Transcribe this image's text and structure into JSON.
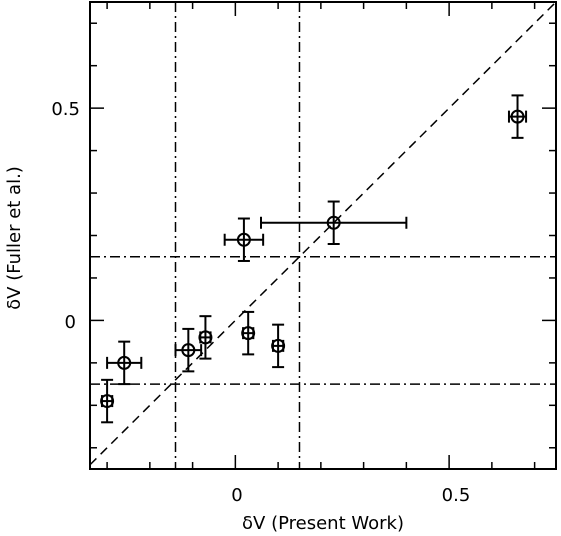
{
  "chart_data": {
    "type": "scatter",
    "title": "",
    "xlabel": "δV (Present Work)",
    "ylabel": "δV (Fuller et al.)",
    "xlim": [
      -0.34,
      0.75
    ],
    "ylim": [
      -0.35,
      0.75
    ],
    "xticks": [
      {
        "value": 0,
        "label": "0"
      },
      {
        "value": 0.5,
        "label": "0.5"
      }
    ],
    "yticks": [
      {
        "value": 0,
        "label": "0"
      },
      {
        "value": 0.5,
        "label": "0.5"
      }
    ],
    "grid": false,
    "marker": "open-circle-with-error-bars",
    "points": [
      {
        "x": -0.3,
        "y": -0.19,
        "xerr": 0.012,
        "yerr": 0.05
      },
      {
        "x": -0.26,
        "y": -0.1,
        "xerr": 0.04,
        "yerr": 0.05
      },
      {
        "x": -0.11,
        "y": -0.07,
        "xerr": 0.03,
        "yerr": 0.05
      },
      {
        "x": -0.07,
        "y": -0.04,
        "xerr": 0.012,
        "yerr": 0.05
      },
      {
        "x": 0.02,
        "y": 0.19,
        "xerr": 0.045,
        "yerr": 0.05
      },
      {
        "x": 0.03,
        "y": -0.03,
        "xerr": 0.012,
        "yerr": 0.05
      },
      {
        "x": 0.1,
        "y": -0.06,
        "xerr": 0.012,
        "yerr": 0.05
      },
      {
        "x": 0.23,
        "y": 0.23,
        "xerr": 0.17,
        "yerr": 0.05
      },
      {
        "x": 0.66,
        "y": 0.48,
        "xerr": 0.02,
        "yerr": 0.05
      }
    ],
    "reference_lines": {
      "diagonal": "y = x (dashed)",
      "vertical": [
        -0.14,
        0.15
      ],
      "horizontal": [
        -0.15,
        0.15
      ]
    }
  }
}
